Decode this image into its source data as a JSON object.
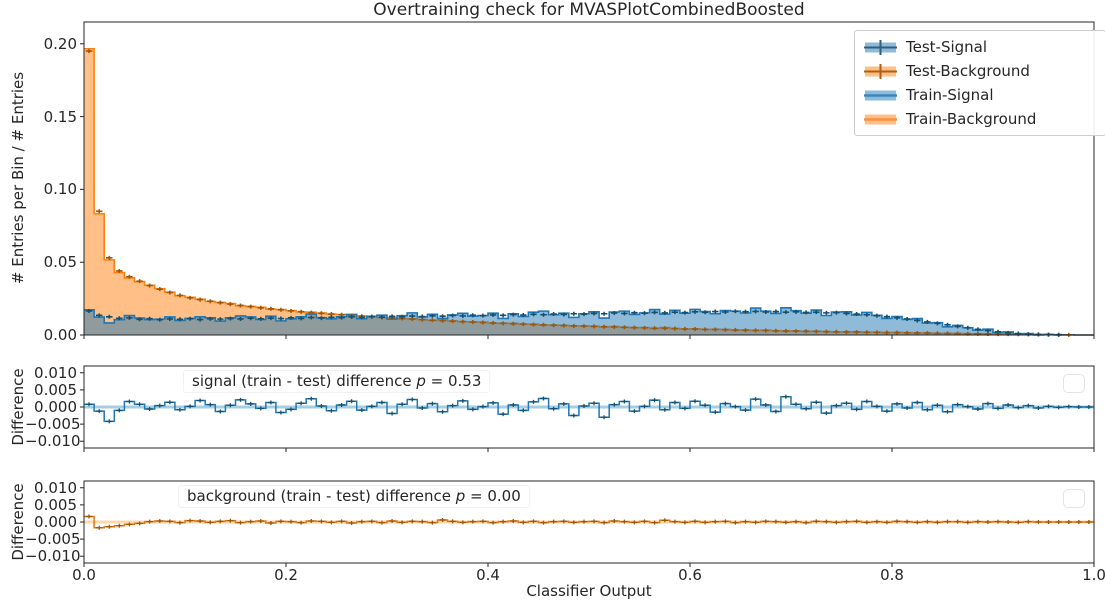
{
  "title": "Overtraining check for MVASPlotCombinedBoosted",
  "colors": {
    "signal": "#1f77b4",
    "background": "#ff7f0e",
    "signal_fill": "rgba(31,119,180,0.5)",
    "background_fill": "rgba(255,127,14,0.5)",
    "signal_dark": "#17506e",
    "background_dark": "#9c5708",
    "diff_background_line": "#e8750e",
    "signal_zero_line": "#a6cee3",
    "background_zero_line": "#ffd8b0",
    "spine": "#262626"
  },
  "axes": {
    "main": {
      "ylabel": "# Entries per Bin / # Entries",
      "yticks": [
        {
          "v": 0.2,
          "label": "0.20"
        },
        {
          "v": 0.15,
          "label": "0.15"
        },
        {
          "v": 0.1,
          "label": "0.10"
        },
        {
          "v": 0.05,
          "label": "0.05"
        },
        {
          "v": 0.0,
          "label": "0.00"
        }
      ]
    },
    "signal_diff": {
      "ylabel": "Difference",
      "yticks": [
        {
          "v": 0.01,
          "label": "0.010"
        },
        {
          "v": 0.005,
          "label": "0.005"
        },
        {
          "v": 0.0,
          "label": "0.000"
        },
        {
          "v": -0.005,
          "label": "−0.005"
        },
        {
          "v": -0.01,
          "label": "−0.010"
        }
      ]
    },
    "background_diff": {
      "ylabel": "Difference",
      "yticks": [
        {
          "v": 0.01,
          "label": "0.010"
        },
        {
          "v": 0.005,
          "label": "0.005"
        },
        {
          "v": 0.0,
          "label": "0.000"
        },
        {
          "v": -0.005,
          "label": "−0.005"
        },
        {
          "v": -0.01,
          "label": "−0.010"
        }
      ]
    },
    "x": {
      "label": "Classifier Output",
      "ticks": [
        {
          "v": 0.0,
          "label": "0.0"
        },
        {
          "v": 0.2,
          "label": "0.2"
        },
        {
          "v": 0.4,
          "label": "0.4"
        },
        {
          "v": 0.6,
          "label": "0.6"
        },
        {
          "v": 0.8,
          "label": "0.8"
        },
        {
          "v": 1.0,
          "label": "1.0"
        }
      ]
    }
  },
  "legend": {
    "items": [
      {
        "label": "Test-Signal"
      },
      {
        "label": "Test-Background"
      },
      {
        "label": "Train-Signal"
      },
      {
        "label": "Train-Background"
      }
    ]
  },
  "annotations": {
    "signal": {
      "prefix": "signal (train - test) difference ",
      "p": "p",
      "value": " = 0.53"
    },
    "background": {
      "prefix": "background (train - test) difference ",
      "p": "p",
      "value": " = 0.00"
    }
  },
  "chart_data": [
    {
      "type": "bar",
      "subtype": "overlaid-step-histograms",
      "panel": "main",
      "title": "Overtraining check for MVASPlotCombinedBoosted",
      "xlabel": "Classifier Output",
      "ylabel": "# Entries per Bin / # Entries",
      "xlim": [
        0,
        1
      ],
      "ylim": [
        0,
        0.215
      ],
      "bins": 100,
      "legend_position": "upper right",
      "series": [
        {
          "name": "Test-Signal",
          "style": "errorbar",
          "color": "#1f77b4",
          "values": [
            0.0165,
            0.0135,
            0.0125,
            0.0115,
            0.0118,
            0.0108,
            0.0112,
            0.0105,
            0.011,
            0.0108,
            0.0112,
            0.0106,
            0.0111,
            0.0109,
            0.0113,
            0.011,
            0.0115,
            0.0111,
            0.0116,
            0.0113,
            0.0118,
            0.0114,
            0.012,
            0.0116,
            0.0122,
            0.0119,
            0.0124,
            0.0121,
            0.0126,
            0.0123,
            0.0128,
            0.0125,
            0.013,
            0.0127,
            0.0132,
            0.0129,
            0.0134,
            0.0131,
            0.0136,
            0.0133,
            0.0138,
            0.0135,
            0.014,
            0.0137,
            0.0142,
            0.0139,
            0.0144,
            0.0141,
            0.0146,
            0.0143,
            0.0148,
            0.0146,
            0.0151,
            0.0148,
            0.0153,
            0.015,
            0.0155,
            0.0152,
            0.0157,
            0.0154,
            0.0159,
            0.0156,
            0.0161,
            0.0158,
            0.0163,
            0.016,
            0.0162,
            0.0158,
            0.0161,
            0.0157,
            0.0159,
            0.0155,
            0.0157,
            0.0152,
            0.0154,
            0.0148,
            0.0144,
            0.0139,
            0.0133,
            0.0126,
            0.0118,
            0.011,
            0.01,
            0.009,
            0.008,
            0.007,
            0.0059,
            0.0049,
            0.0039,
            0.003,
            0.0022,
            0.0015,
            0.001,
            0.0006,
            0.0003,
            0.0002,
            0.0001,
            0.0,
            0.0,
            0.0
          ]
        },
        {
          "name": "Test-Background",
          "style": "errorbar",
          "color": "#ff7f0e",
          "values": [
            0.195,
            0.085,
            0.053,
            0.044,
            0.04,
            0.037,
            0.034,
            0.0315,
            0.0292,
            0.0272,
            0.0255,
            0.0243,
            0.0232,
            0.0222,
            0.0212,
            0.0203,
            0.0195,
            0.0187,
            0.018,
            0.0173,
            0.0166,
            0.016,
            0.0154,
            0.0149,
            0.0144,
            0.0139,
            0.0134,
            0.0129,
            0.0125,
            0.0121,
            0.0117,
            0.0113,
            0.0109,
            0.0105,
            0.0102,
            0.0098,
            0.0095,
            0.0092,
            0.0089,
            0.0086,
            0.0083,
            0.008,
            0.0077,
            0.0075,
            0.0072,
            0.007,
            0.0067,
            0.0065,
            0.0063,
            0.0061,
            0.0059,
            0.0057,
            0.0055,
            0.0053,
            0.0051,
            0.0049,
            0.0047,
            0.0046,
            0.0044,
            0.0042,
            0.0041,
            0.0039,
            0.0038,
            0.0036,
            0.0035,
            0.0033,
            0.0032,
            0.0031,
            0.0029,
            0.0028,
            0.0027,
            0.0026,
            0.0024,
            0.0023,
            0.0022,
            0.0021,
            0.002,
            0.0019,
            0.0018,
            0.0017,
            0.0016,
            0.0015,
            0.0014,
            0.0013,
            0.0012,
            0.0011,
            0.001,
            0.0009,
            0.0008,
            0.0007,
            0.0006,
            0.0006,
            0.0005,
            0.0004,
            0.0004,
            0.0003,
            0.0002,
            0.0001,
            0.0,
            0.0
          ]
        },
        {
          "name": "Train-Signal",
          "style": "filled-step",
          "color": "#1f77b4",
          "values_rule": "Test-Signal values plus signal_diff values"
        },
        {
          "name": "Train-Background",
          "style": "filled-step",
          "color": "#ff7f0e",
          "values_rule": "Test-Background values plus background_diff values"
        }
      ]
    },
    {
      "type": "line",
      "subtype": "step-difference",
      "panel": "signal_diff",
      "name": "signal_diff",
      "annotation": "signal (train - test) difference p = 0.53",
      "p_value": 0.53,
      "ylabel": "Difference",
      "ylim": [
        -0.012,
        0.012
      ],
      "color": "#1f77b4",
      "values": [
        0.0008,
        -0.0012,
        -0.0042,
        -0.001,
        0.0016,
        0.0008,
        -0.0006,
        0.0004,
        0.0014,
        -0.0008,
        0.0002,
        0.0019,
        0.0007,
        -0.0013,
        0.0005,
        0.0021,
        0.0009,
        -0.0004,
        0.0013,
        -0.0016,
        -0.0007,
        0.0011,
        0.0024,
        0.0003,
        -0.0011,
        0.0006,
        0.0017,
        -0.0009,
        0.0002,
        0.0013,
        -0.0019,
        0.0008,
        0.0022,
        -0.0003,
        0.001,
        -0.0014,
        0.0004,
        0.0018,
        -0.0007,
        0.0001,
        0.0012,
        -0.0021,
        0.0006,
        -0.001,
        0.0015,
        0.0025,
        -0.0005,
        0.0009,
        -0.0025,
        0.0003,
        0.0011,
        -0.003,
        0.0007,
        0.0016,
        -0.0012,
        0.0002,
        0.002,
        -0.0008,
        0.0013,
        -0.0004,
        0.0017,
        0.0005,
        -0.0015,
        0.001,
        0.0001,
        -0.0009,
        0.0023,
        0.0006,
        -0.0013,
        0.003,
        0.0008,
        -0.0005,
        0.0014,
        -0.0018,
        0.0004,
        0.0011,
        -0.0007,
        0.0016,
        0.0002,
        -0.0012,
        0.0009,
        -0.0003,
        0.0013,
        -0.0008,
        0.0005,
        -0.0014,
        0.0007,
        0.0001,
        -0.0006,
        0.001,
        -0.0004,
        0.0006,
        -0.0002,
        0.0004,
        -0.0003,
        0.0002,
        -0.0001,
        0.0001,
        0.0,
        0.0
      ]
    },
    {
      "type": "line",
      "subtype": "step-difference",
      "panel": "background_diff",
      "name": "background_diff",
      "annotation": "background (train - test) difference p = 0.00",
      "p_value": 0.0,
      "ylabel": "Difference",
      "ylim": [
        -0.012,
        0.012
      ],
      "color": "#ff7f0e",
      "values": [
        0.0016,
        -0.0017,
        -0.0014,
        -0.0011,
        -0.0007,
        -0.0004,
        0.0001,
        0.0003,
        0.0002,
        -0.0002,
        0.0004,
        0.0003,
        -0.0001,
        0.0002,
        0.0004,
        -0.0002,
        0.0001,
        0.0003,
        -0.0003,
        0.0002,
        0.0001,
        -0.0002,
        0.0003,
        0.0002,
        -0.0001,
        0.0002,
        -0.0003,
        0.0001,
        0.0002,
        -0.0002,
        0.0003,
        -0.0001,
        0.0002,
        0.0001,
        -0.0002,
        0.0006,
        0.0002,
        -0.0001,
        0.0001,
        0.0002,
        -0.0002,
        0.0001,
        0.0003,
        -0.0001,
        0.0002,
        -0.0002,
        0.0001,
        0.0002,
        -0.0001,
        0.0001,
        0.0002,
        -0.0002,
        0.0003,
        0.0001,
        -0.0001,
        0.0002,
        -0.0002,
        0.0005,
        0.0001,
        -0.0001,
        0.0002,
        -0.0001,
        0.0001,
        0.0002,
        -0.0002,
        0.0001,
        -0.0001,
        0.0002,
        0.0001,
        -0.0001,
        0.0001,
        -0.0002,
        0.0002,
        0.0001,
        -0.0001,
        0.0001,
        0.0002,
        -0.0001,
        0.0001,
        -0.0001,
        0.0002,
        0.0001,
        -0.0001,
        0.0001,
        -0.0001,
        0.0001,
        0.0001,
        -0.0001,
        0.0001,
        0.0,
        0.0001,
        0.0,
        -0.0001,
        0.0001,
        0.0,
        0.0,
        0.0,
        0.0,
        0.0,
        0.0
      ]
    }
  ]
}
